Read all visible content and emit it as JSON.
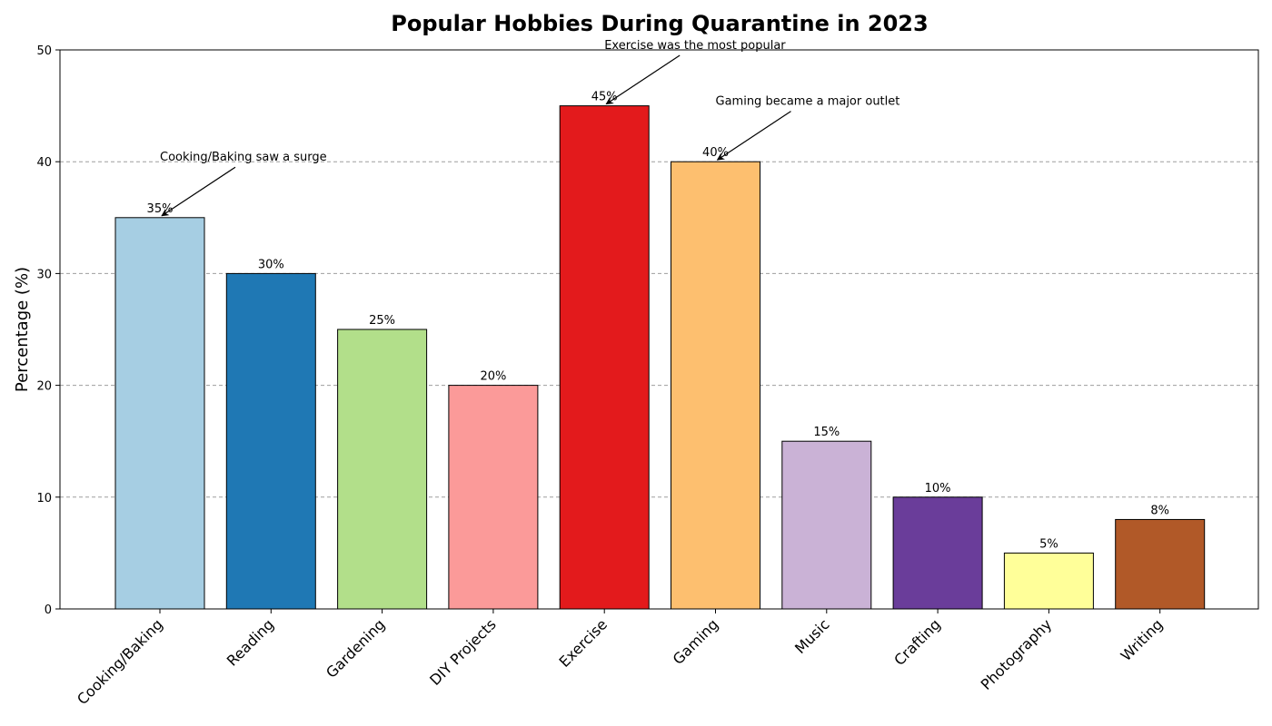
{
  "chart_data": {
    "type": "bar",
    "title": "Popular Hobbies During Quarantine in 2023",
    "xlabel": "",
    "ylabel": "Percentage (%)",
    "ylim": [
      0,
      50
    ],
    "yticks": [
      0,
      10,
      20,
      30,
      40,
      50
    ],
    "grid": "y dashed",
    "categories": [
      "Cooking/Baking",
      "Reading",
      "Gardening",
      "DIY Projects",
      "Exercise",
      "Gaming",
      "Music",
      "Crafting",
      "Photography",
      "Writing"
    ],
    "values": [
      35,
      30,
      25,
      20,
      45,
      40,
      15,
      10,
      5,
      8
    ],
    "value_labels": [
      "35%",
      "30%",
      "25%",
      "20%",
      "45%",
      "40%",
      "15%",
      "10%",
      "5%",
      "8%"
    ],
    "colors": [
      "#a6cee3",
      "#1f78b4",
      "#b2df8a",
      "#fb9a99",
      "#e31a1c",
      "#fdbf6f",
      "#cab2d6",
      "#6a3d9a",
      "#ffff99",
      "#b15928"
    ],
    "annotations": [
      {
        "text": "Cooking/Baking saw a surge",
        "category": "Cooking/Baking",
        "target_value": 35,
        "text_value": 40
      },
      {
        "text": "Exercise was the most popular",
        "category": "Exercise",
        "target_value": 45,
        "text_value": 50
      },
      {
        "text": "Gaming became a major outlet",
        "category": "Gaming",
        "target_value": 40,
        "text_value": 45
      }
    ]
  }
}
